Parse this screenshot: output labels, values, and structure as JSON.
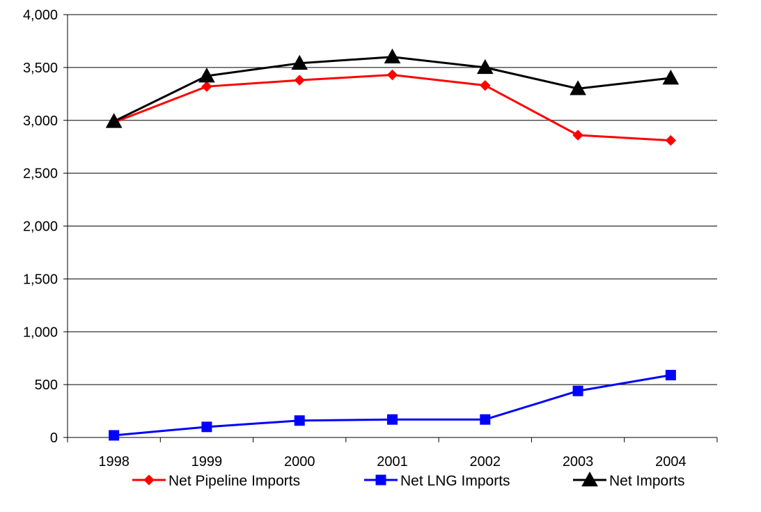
{
  "chart_data": {
    "type": "line",
    "title": "",
    "xlabel": "",
    "ylabel": "",
    "categories": [
      "1998",
      "1999",
      "2000",
      "2001",
      "2002",
      "2003",
      "2004"
    ],
    "ylim": [
      0,
      4000
    ],
    "yticks": [
      0,
      500,
      1000,
      1500,
      2000,
      2500,
      3000,
      3500,
      4000
    ],
    "ytick_labels": [
      "0",
      "500",
      "1,000",
      "1,500",
      "2,000",
      "2,500",
      "3,000",
      "3,500",
      "4,000"
    ],
    "grid": "horizontal",
    "legend_position": "bottom",
    "series": [
      {
        "name": "Net Pipeline Imports",
        "color": "#ff0000",
        "marker": "diamond",
        "values": [
          2980,
          3320,
          3380,
          3430,
          3330,
          2860,
          2810
        ]
      },
      {
        "name": "Net LNG Imports",
        "color": "#0000ff",
        "marker": "square",
        "values": [
          20,
          100,
          160,
          170,
          170,
          440,
          590
        ]
      },
      {
        "name": "Net Imports",
        "color": "#000000",
        "marker": "triangle",
        "values": [
          2990,
          3420,
          3540,
          3600,
          3500,
          3300,
          3400
        ]
      }
    ]
  }
}
